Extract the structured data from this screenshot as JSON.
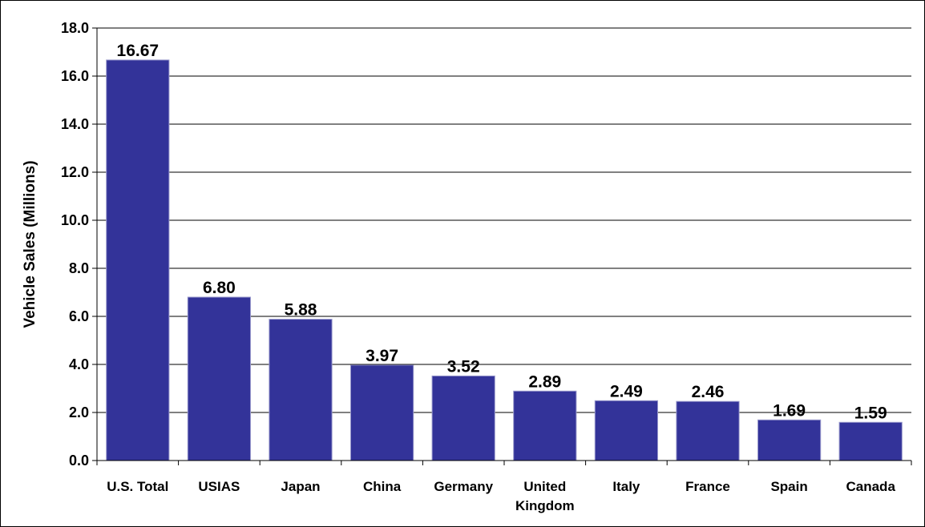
{
  "chart_data": {
    "type": "bar",
    "title": "",
    "xlabel": "",
    "ylabel": "Vehicle Sales (Millions)",
    "ylim": [
      0,
      18
    ],
    "yticks": [
      "0.0",
      "2.0",
      "4.0",
      "6.0",
      "8.0",
      "10.0",
      "12.0",
      "14.0",
      "16.0",
      "18.0"
    ],
    "grid": true,
    "legend": "none",
    "categories": [
      "U.S. Total",
      "USIAS",
      "Japan",
      "China",
      "Germany",
      "United Kingdom",
      "Italy",
      "France",
      "Spain",
      "Canada"
    ],
    "category_lines": [
      [
        "U.S. Total"
      ],
      [
        "USIAS"
      ],
      [
        "Japan"
      ],
      [
        "China"
      ],
      [
        "Germany"
      ],
      [
        "United",
        "Kingdom"
      ],
      [
        "Italy"
      ],
      [
        "France"
      ],
      [
        "Spain"
      ],
      [
        "Canada"
      ]
    ],
    "values": [
      16.67,
      6.8,
      5.88,
      3.97,
      3.52,
      2.89,
      2.49,
      2.46,
      1.69,
      1.59
    ],
    "value_labels": [
      "16.67",
      "6.80",
      "5.88",
      "3.97",
      "3.52",
      "2.89",
      "2.49",
      "2.46",
      "1.69",
      "1.59"
    ],
    "colors": {
      "bar_fill": "#333399",
      "bar_stroke": "#9999cc",
      "gridline": "#000000",
      "axis": "#000000",
      "background": "#ffffff"
    }
  }
}
